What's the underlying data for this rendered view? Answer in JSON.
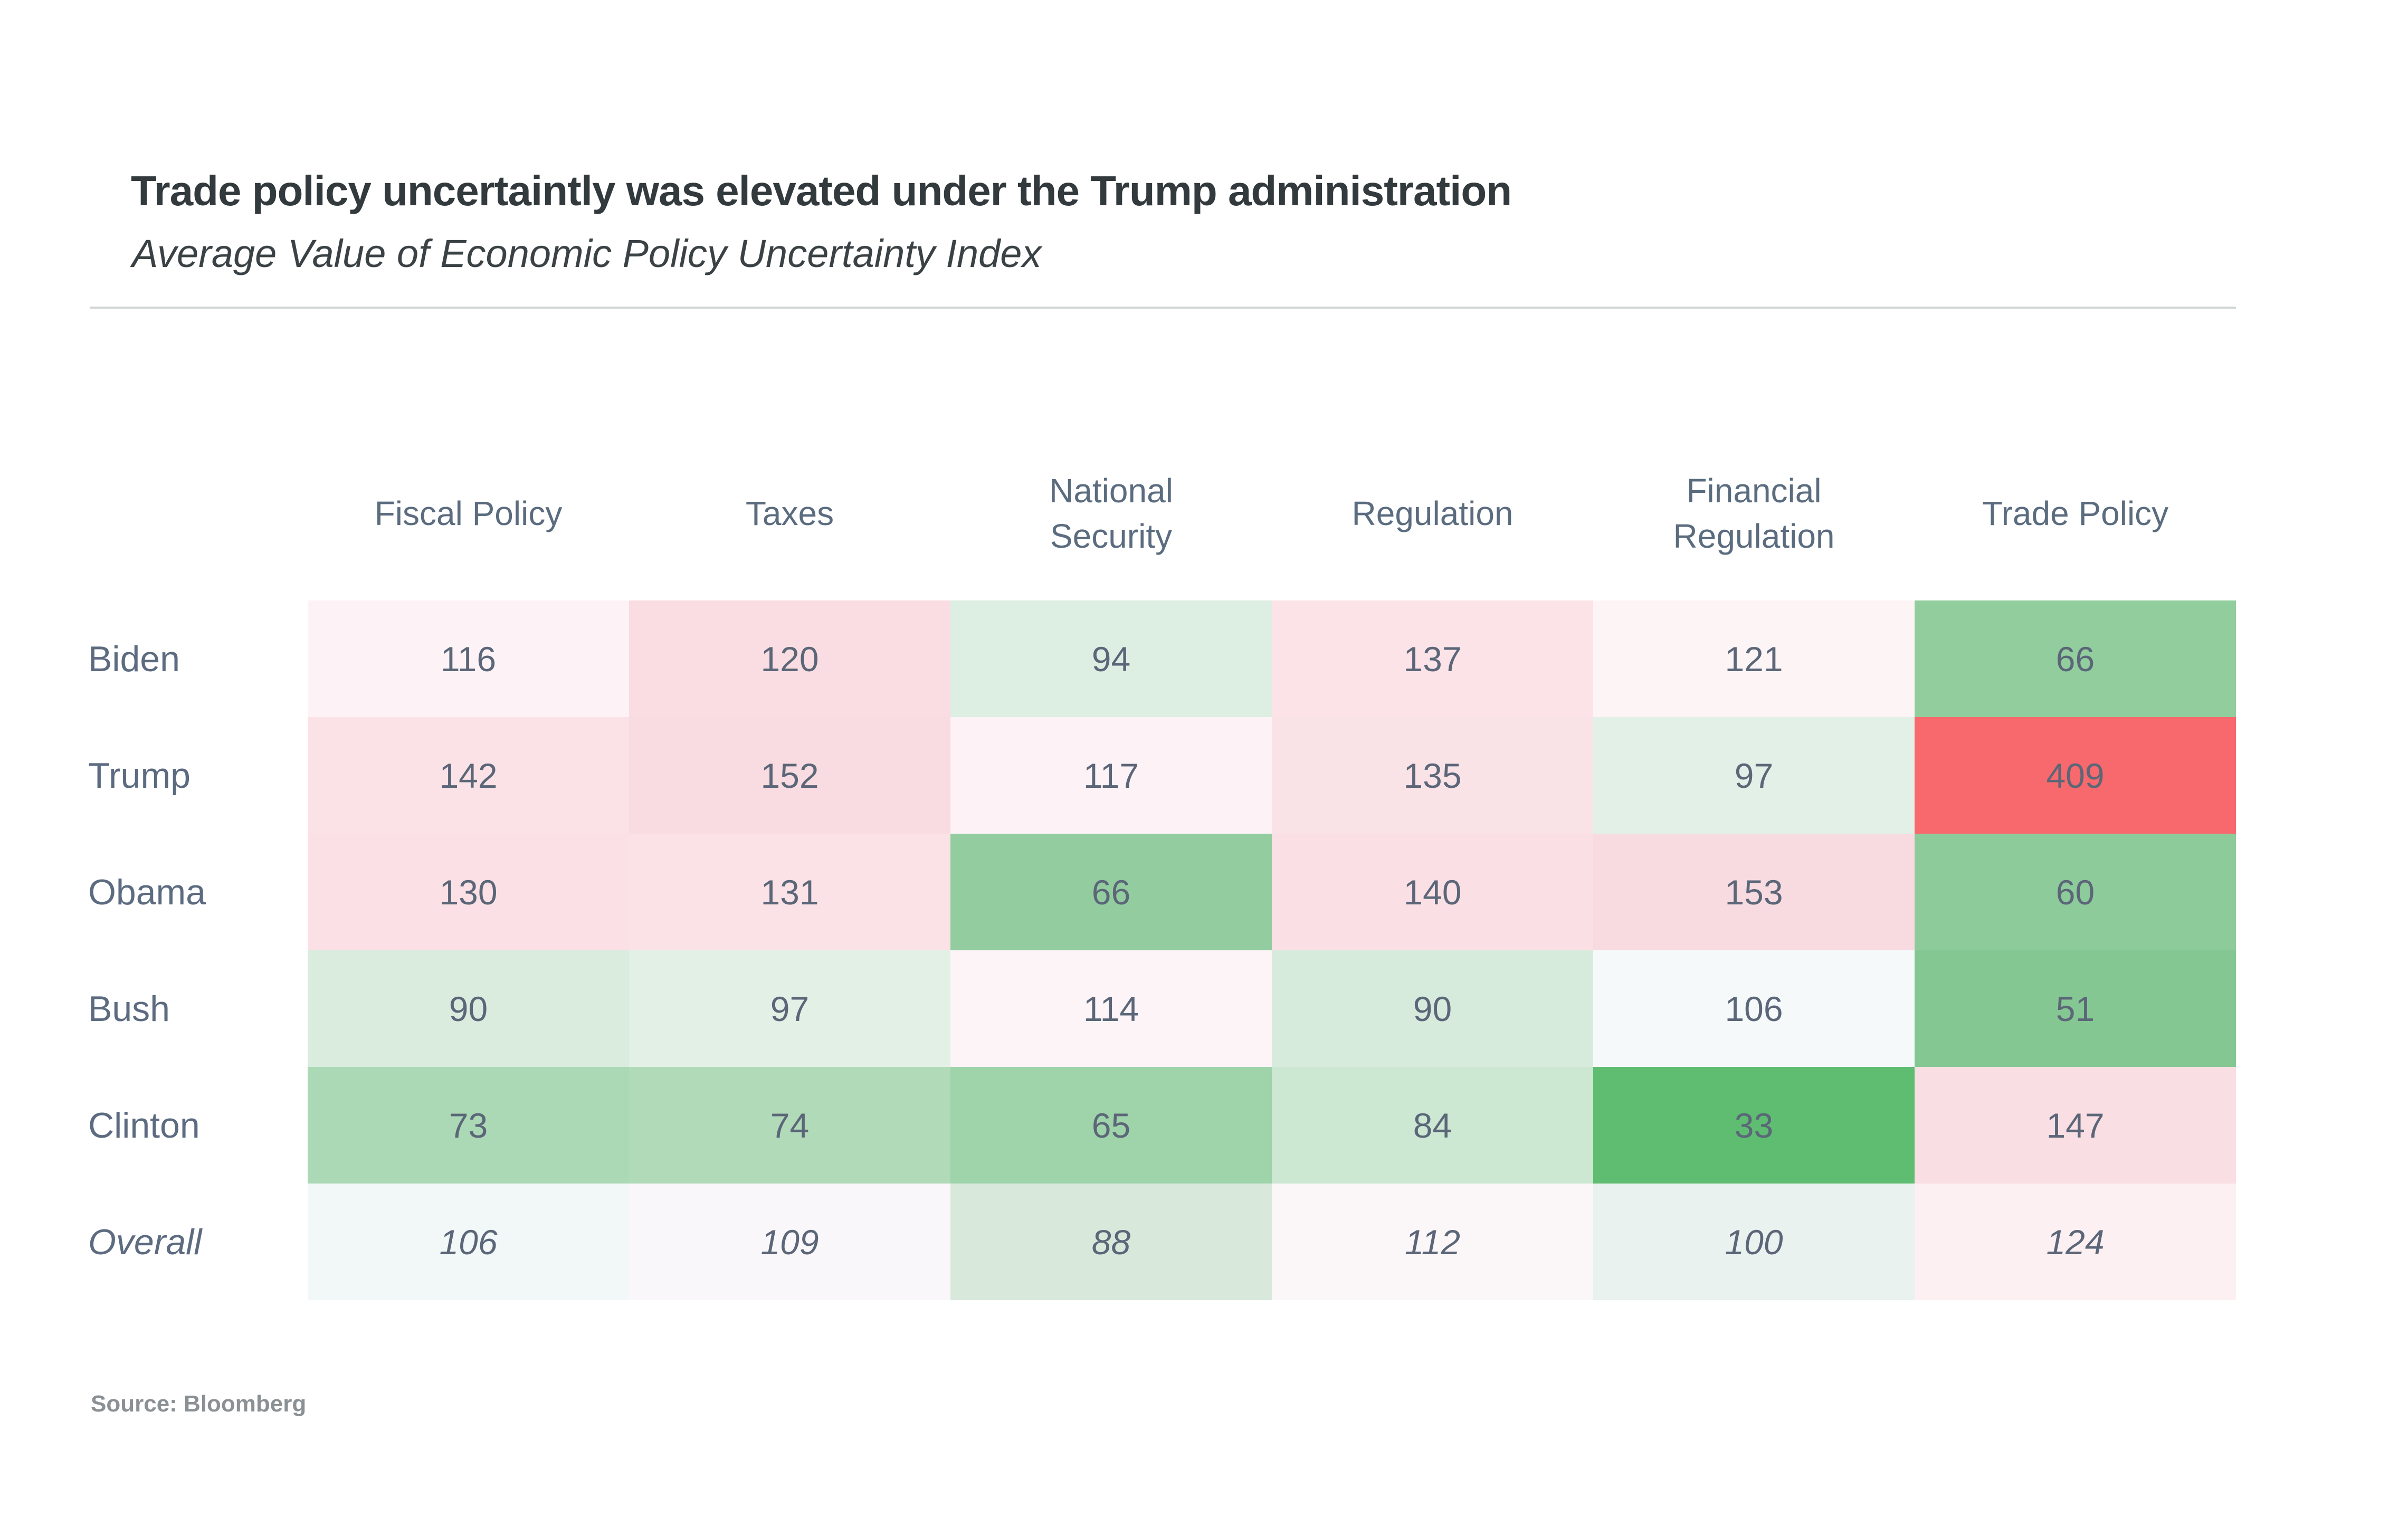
{
  "chart_data": {
    "type": "heatmap",
    "title": "Trade policy uncertaintly was elevated under the Trump administration",
    "subtitle": "Average Value of Economic Policy Uncertainty Index",
    "source": "Source: Bloomberg",
    "columns": [
      "Fiscal Policy",
      "Taxes",
      "National Security",
      "Regulation",
      "Financial Regulation",
      "Trade Policy"
    ],
    "rows": [
      {
        "label": "Biden",
        "italic": false,
        "values": [
          116,
          120,
          94,
          137,
          121,
          66
        ],
        "cell_colors": [
          "#fdf3f6",
          "#fadde2",
          "#ddeee3",
          "#fbe3e7",
          "#fdf4f6",
          "#92cd9e"
        ]
      },
      {
        "label": "Trump",
        "italic": false,
        "values": [
          142,
          152,
          117,
          135,
          97,
          409
        ],
        "cell_colors": [
          "#fbe2e6",
          "#f9dce1",
          "#fdf3f6",
          "#fae3e7",
          "#e3f0e7",
          "#f7696c"
        ]
      },
      {
        "label": "Obama",
        "italic": false,
        "values": [
          130,
          131,
          66,
          140,
          153,
          60
        ],
        "cell_colors": [
          "#fbe1e5",
          "#fbe2e6",
          "#93cd9f",
          "#fae0e4",
          "#f8dbe0",
          "#8ecb9b"
        ]
      },
      {
        "label": "Bush",
        "italic": false,
        "values": [
          90,
          97,
          114,
          90,
          106,
          51
        ],
        "cell_colors": [
          "#d9ecde",
          "#e3f0e6",
          "#fdf4f7",
          "#d7ebdc",
          "#f5f9fa",
          "#85c793"
        ]
      },
      {
        "label": "Clinton",
        "italic": false,
        "values": [
          73,
          74,
          65,
          84,
          33,
          147
        ],
        "cell_colors": [
          "#abd8b5",
          "#b1dab9",
          "#9fd3aa",
          "#cce7d2",
          "#5fbd71",
          "#f9dee3"
        ]
      },
      {
        "label": "Overall",
        "italic": true,
        "values": [
          106,
          109,
          88,
          112,
          100,
          124
        ],
        "cell_colors": [
          "#f2f7f7",
          "#faf7fa",
          "#d8e9dc",
          "#fbf6f8",
          "#e9f2ee",
          "#fcf0f3"
        ]
      }
    ],
    "value_range": {
      "min": 33,
      "max": 409
    },
    "palette": {
      "strong_green_low": "#5fbd71",
      "strong_red_high": "#f7696c",
      "number_text": "#5b6678",
      "header_text": "#5b6c7f",
      "row_label_text": "#5c6b80",
      "title_text": "#333a3d",
      "subtitle_text": "#3b4245",
      "source_text": "#8a9094",
      "divider": "#d3d6d6"
    },
    "legend_position": "none",
    "grid": false
  }
}
